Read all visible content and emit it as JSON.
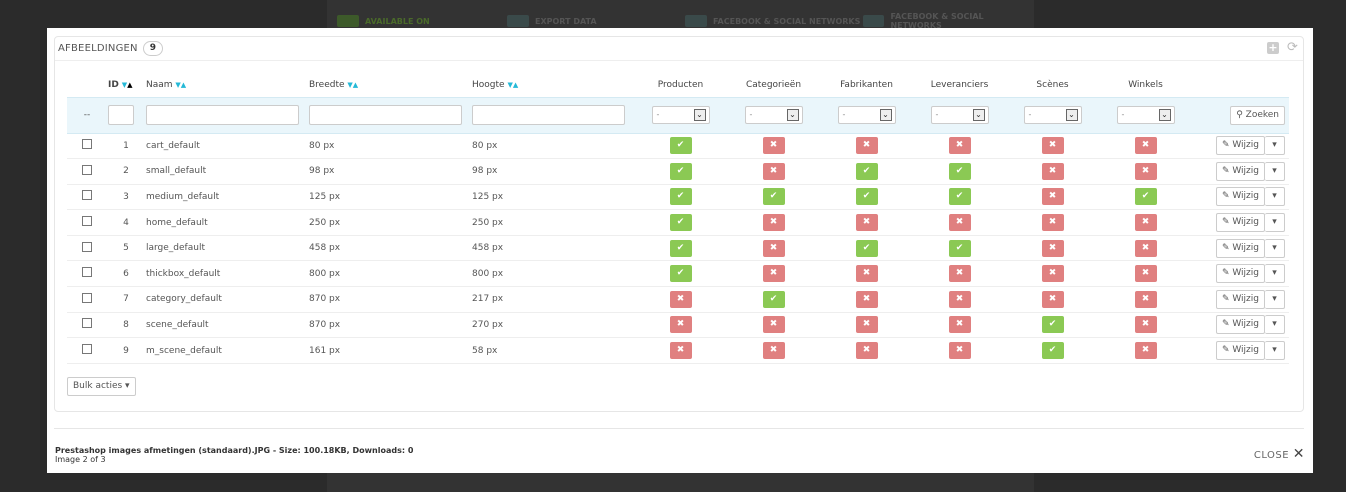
{
  "background": {
    "promos": [
      "AVAILABLE ON",
      "EXPORT DATA",
      "FACEBOOK & SOCIAL NETWORKS",
      "FACEBOOK & SOCIAL NETWORKS"
    ]
  },
  "panel": {
    "title": "AFBEELDINGEN",
    "count": "9"
  },
  "columns": {
    "id": "ID",
    "name": "Naam",
    "width": "Breedte",
    "height": "Hoogte",
    "products": "Producten",
    "categories": "Categorieën",
    "manufacturers": "Fabrikanten",
    "suppliers": "Leveranciers",
    "scenes": "Scènes",
    "stores": "Winkels"
  },
  "filter": {
    "reset": "--",
    "select_value": "-",
    "search_label": "Zoeken"
  },
  "colors": {
    "yes": "#8bc954",
    "no": "#e08080",
    "accent": "#25b9d7"
  },
  "rows": [
    {
      "id": "1",
      "name": "cart_default",
      "width": "80 px",
      "height": "80 px",
      "flags": [
        1,
        0,
        0,
        0,
        0,
        0
      ]
    },
    {
      "id": "2",
      "name": "small_default",
      "width": "98 px",
      "height": "98 px",
      "flags": [
        1,
        0,
        1,
        1,
        0,
        0
      ]
    },
    {
      "id": "3",
      "name": "medium_default",
      "width": "125 px",
      "height": "125 px",
      "flags": [
        1,
        1,
        1,
        1,
        0,
        1
      ]
    },
    {
      "id": "4",
      "name": "home_default",
      "width": "250 px",
      "height": "250 px",
      "flags": [
        1,
        0,
        0,
        0,
        0,
        0
      ]
    },
    {
      "id": "5",
      "name": "large_default",
      "width": "458 px",
      "height": "458 px",
      "flags": [
        1,
        0,
        1,
        1,
        0,
        0
      ]
    },
    {
      "id": "6",
      "name": "thickbox_default",
      "width": "800 px",
      "height": "800 px",
      "flags": [
        1,
        0,
        0,
        0,
        0,
        0
      ]
    },
    {
      "id": "7",
      "name": "category_default",
      "width": "870 px",
      "height": "217 px",
      "flags": [
        0,
        1,
        0,
        0,
        0,
        0
      ]
    },
    {
      "id": "8",
      "name": "scene_default",
      "width": "870 px",
      "height": "270 px",
      "flags": [
        0,
        0,
        0,
        0,
        1,
        0
      ]
    },
    {
      "id": "9",
      "name": "m_scene_default",
      "width": "161 px",
      "height": "58 px",
      "flags": [
        0,
        0,
        0,
        0,
        1,
        0
      ]
    }
  ],
  "row_action": "Wijzig",
  "bulk": "Bulk acties",
  "caption": {
    "title": "Prestashop images afmetingen (standaard).JPG - Size: 100.18KB, Downloads: 0",
    "sub": "Image 2 of 3"
  },
  "close": "CLOSE"
}
